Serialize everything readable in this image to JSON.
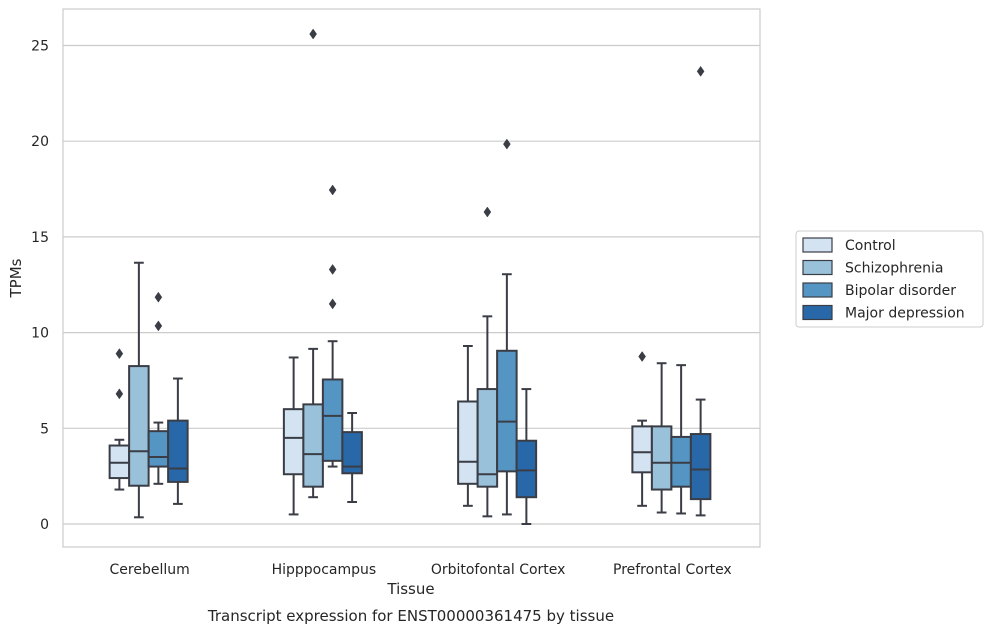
{
  "chart_data": {
    "type": "box",
    "title": "",
    "caption": "Transcript expression for ENST00000361475 by tissue",
    "xlabel": "Tissue",
    "ylabel": "TPMs",
    "ylim": [
      -1.2,
      26.9
    ],
    "yticks": [
      0,
      5,
      10,
      15,
      20,
      25
    ],
    "grid": "horizontal",
    "legend_position": "right",
    "categories": [
      "Cerebellum",
      "Hipppocampus",
      "Orbitofontal Cortex",
      "Prefrontal Cortex"
    ],
    "series": [
      {
        "name": "Control",
        "color": "#d3e3f2",
        "boxes": [
          {
            "whislo": 1.8,
            "q1": 2.4,
            "med": 3.2,
            "q3": 4.1,
            "whishi": 4.4,
            "fliers": [
              6.8,
              8.9
            ]
          },
          {
            "whislo": 0.5,
            "q1": 2.6,
            "med": 4.5,
            "q3": 6.0,
            "whishi": 8.7,
            "fliers": []
          },
          {
            "whislo": 0.95,
            "q1": 2.1,
            "med": 3.25,
            "q3": 6.4,
            "whishi": 9.3,
            "fliers": []
          },
          {
            "whislo": 0.95,
            "q1": 2.7,
            "med": 3.75,
            "q3": 5.1,
            "whishi": 5.4,
            "fliers": [
              8.75
            ]
          }
        ]
      },
      {
        "name": "Schizophrenia",
        "color": "#9ac1da",
        "boxes": [
          {
            "whislo": 0.35,
            "q1": 2.0,
            "med": 3.8,
            "q3": 8.25,
            "whishi": 13.65,
            "fliers": []
          },
          {
            "whislo": 1.4,
            "q1": 1.95,
            "med": 3.65,
            "q3": 6.25,
            "whishi": 9.15,
            "fliers": [
              25.6
            ]
          },
          {
            "whislo": 0.4,
            "q1": 1.95,
            "med": 2.6,
            "q3": 7.05,
            "whishi": 10.85,
            "fliers": [
              16.3
            ]
          },
          {
            "whislo": 0.6,
            "q1": 1.8,
            "med": 3.2,
            "q3": 5.1,
            "whishi": 8.4,
            "fliers": []
          }
        ]
      },
      {
        "name": "Bipolar disorder",
        "color": "#5595c4",
        "boxes": [
          {
            "whislo": 2.1,
            "q1": 3.0,
            "med": 3.5,
            "q3": 4.85,
            "whishi": 5.3,
            "fliers": [
              10.35,
              11.85
            ]
          },
          {
            "whislo": 3.0,
            "q1": 3.3,
            "med": 5.65,
            "q3": 7.55,
            "whishi": 9.55,
            "fliers": [
              11.5,
              13.3,
              17.45
            ]
          },
          {
            "whislo": 0.5,
            "q1": 2.75,
            "med": 5.35,
            "q3": 9.05,
            "whishi": 13.05,
            "fliers": [
              19.85
            ]
          },
          {
            "whislo": 0.55,
            "q1": 1.95,
            "med": 3.2,
            "q3": 4.55,
            "whishi": 8.3,
            "fliers": []
          }
        ]
      },
      {
        "name": "Major depression",
        "color": "#2868a9",
        "boxes": [
          {
            "whislo": 1.05,
            "q1": 2.2,
            "med": 2.9,
            "q3": 5.4,
            "whishi": 7.6,
            "fliers": []
          },
          {
            "whislo": 1.15,
            "q1": 2.65,
            "med": 3.0,
            "q3": 4.8,
            "whishi": 5.8,
            "fliers": []
          },
          {
            "whislo": 0.0,
            "q1": 1.4,
            "med": 2.8,
            "q3": 4.35,
            "whishi": 7.05,
            "fliers": []
          },
          {
            "whislo": 0.45,
            "q1": 1.3,
            "med": 2.85,
            "q3": 4.7,
            "whishi": 6.5,
            "fliers": [
              23.65
            ]
          }
        ]
      }
    ]
  },
  "colors": {
    "grid": "#cccccc",
    "axis_frame": "#cccccc",
    "box_edge": "#3a3d45"
  }
}
